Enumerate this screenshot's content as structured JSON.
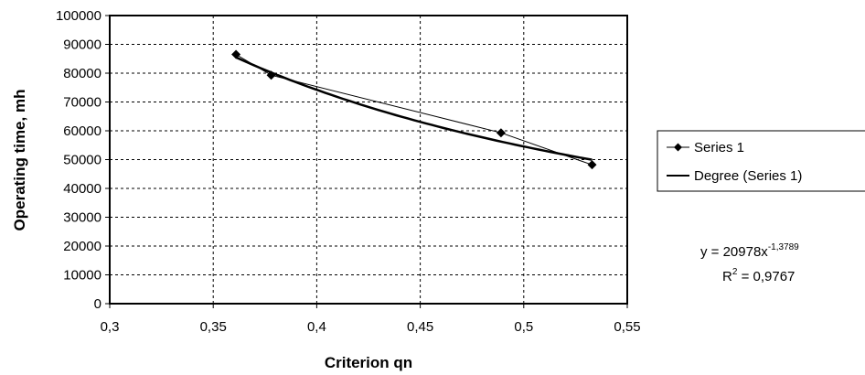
{
  "chart_data": {
    "type": "scatter",
    "xlabel": "Criterion qn",
    "ylabel": "Operating time, mh",
    "xlim": [
      0.3,
      0.55
    ],
    "ylim": [
      0,
      100000
    ],
    "x_ticks": [
      "0,3",
      "0,35",
      "0,4",
      "0,45",
      "0,5",
      "0,55"
    ],
    "y_ticks": [
      "0",
      "10000",
      "20000",
      "30000",
      "40000",
      "50000",
      "60000",
      "70000",
      "80000",
      "90000",
      "100000"
    ],
    "grid": true,
    "legend_position": "right",
    "series": [
      {
        "name": "Series 1",
        "marker": "diamond",
        "points": [
          {
            "x": 0.361,
            "y": 86500
          },
          {
            "x": 0.378,
            "y": 79300
          },
          {
            "x": 0.489,
            "y": 59300
          },
          {
            "x": 0.533,
            "y": 48200
          }
        ]
      },
      {
        "name": "Degree (Series 1)",
        "kind": "power-trend",
        "coef_a": 20978,
        "exponent": -1.3789,
        "x_range": [
          0.361,
          0.533
        ]
      }
    ],
    "equation": {
      "lhs": "y = 20978x",
      "exponent": "-1,3789",
      "r2_prefix": "R",
      "r2_power": "2",
      "r2_value": " = 0,9767"
    }
  }
}
